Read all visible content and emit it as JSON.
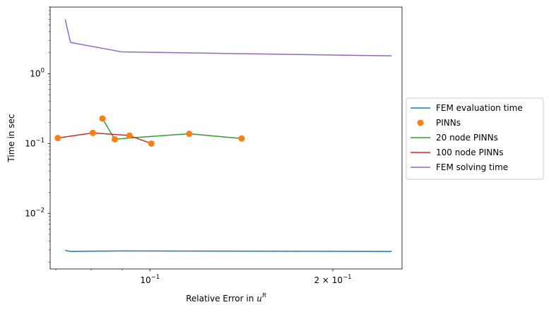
{
  "chart_data": {
    "type": "line",
    "xlabel": "Relative Error in ",
    "xlabel_math": "u",
    "xlabel_sup": "R",
    "ylabel": "Time in sec",
    "xscale": "log",
    "yscale": "log",
    "xlim": [
      0.0685,
      0.26
    ],
    "ylim": [
      0.0016,
      9.0
    ],
    "x_ticks": [
      {
        "value": 0.1,
        "base": "10",
        "exp": "−1"
      },
      {
        "value": 0.2,
        "base": "2 × 10",
        "exp": "−1"
      }
    ],
    "y_ticks": [
      {
        "value": 0.01,
        "base": "10",
        "exp": "−2"
      },
      {
        "value": 0.1,
        "base": "10",
        "exp": "−1"
      },
      {
        "value": 1,
        "base": "10",
        "exp": "0"
      }
    ],
    "grid": false,
    "legend_placement": "outside-right",
    "series": [
      {
        "name": "FEM evaluation time",
        "kind": "line",
        "color": "#1f77b4",
        "x": [
          0.0725,
          0.074,
          0.09,
          0.25
        ],
        "y": [
          0.00295,
          0.00285,
          0.0029,
          0.00285
        ]
      },
      {
        "name": "PINNs",
        "kind": "scatter",
        "color": "#ff7f0e",
        "x": [
          0.0705,
          0.0805,
          0.0835,
          0.0875,
          0.0925,
          0.1005,
          0.116,
          0.1415
        ],
        "y": [
          0.12,
          0.142,
          0.228,
          0.115,
          0.13,
          0.1,
          0.138,
          0.118
        ]
      },
      {
        "name": "20 node PINNs",
        "kind": "line",
        "color": "#2ca02c",
        "x": [
          0.0835,
          0.0875,
          0.0925,
          0.116,
          0.1415
        ],
        "y": [
          0.228,
          0.115,
          0.12,
          0.138,
          0.118
        ]
      },
      {
        "name": "100 node PINNs",
        "kind": "line",
        "color": "#d62728",
        "x": [
          0.0705,
          0.0805,
          0.0925,
          0.1005
        ],
        "y": [
          0.12,
          0.142,
          0.13,
          0.1
        ]
      },
      {
        "name": "FEM solving time",
        "kind": "line",
        "color": "#9467bd",
        "x": [
          0.0725,
          0.074,
          0.09,
          0.25
        ],
        "y": [
          6.0,
          2.8,
          2.05,
          1.8
        ]
      }
    ]
  }
}
